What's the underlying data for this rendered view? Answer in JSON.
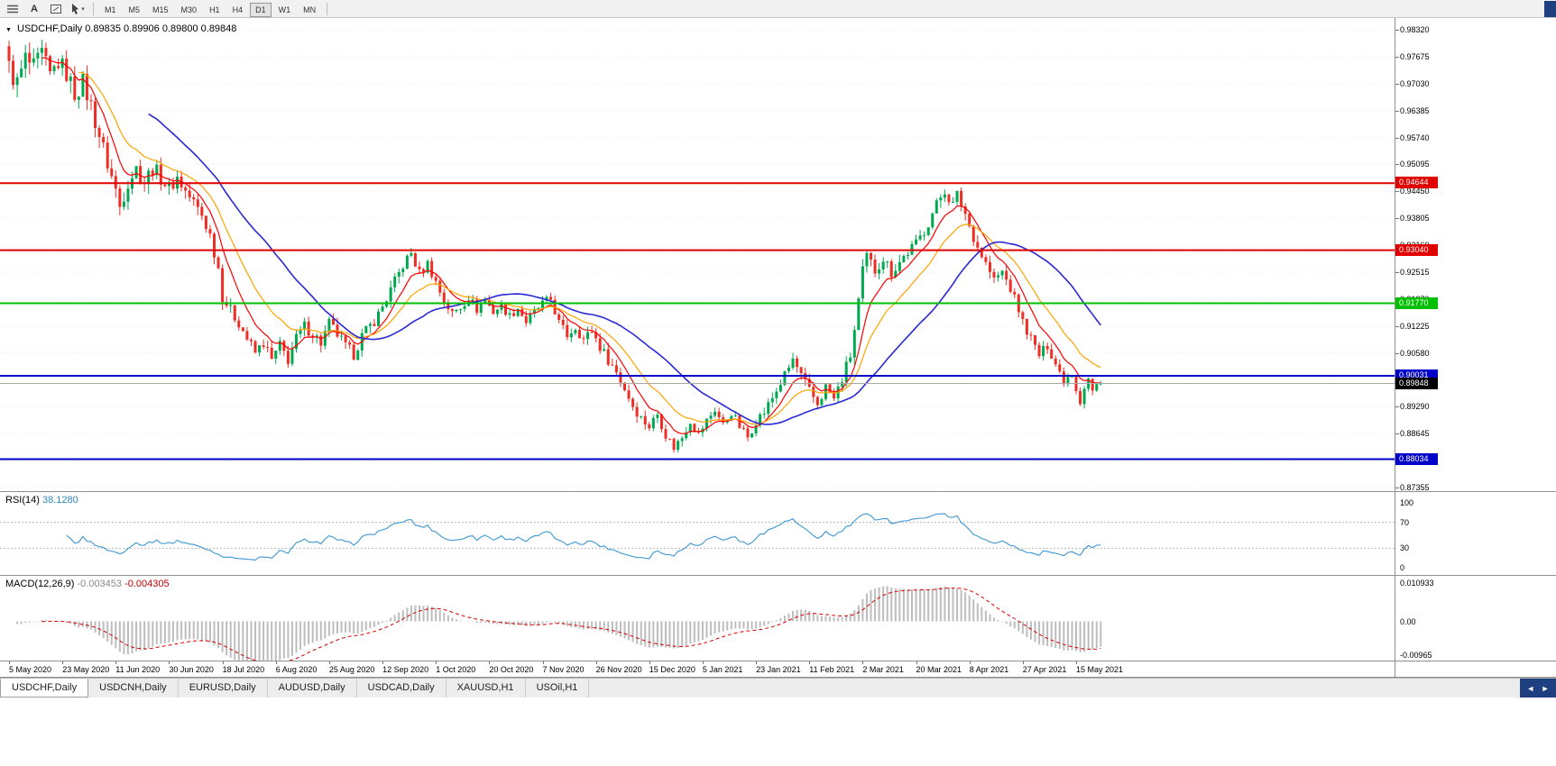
{
  "toolbar": {
    "text_tool_glyph": "A",
    "dropdown_caret": "▾",
    "timeframes": [
      {
        "label": "M1",
        "active": false
      },
      {
        "label": "M5",
        "active": false
      },
      {
        "label": "M15",
        "active": false
      },
      {
        "label": "M30",
        "active": false
      },
      {
        "label": "H1",
        "active": false
      },
      {
        "label": "H4",
        "active": false
      },
      {
        "label": "D1",
        "active": true
      },
      {
        "label": "W1",
        "active": false
      },
      {
        "label": "MN",
        "active": false
      }
    ]
  },
  "chart": {
    "collapse_glyph": "▼",
    "title_symbol": "USDCHF,Daily",
    "title_ohlc": "0.89835 0.89906 0.89800 0.89848"
  },
  "chart_data": {
    "type": "candlestick",
    "symbol": "USDCHF",
    "timeframe": "Daily",
    "last_bar": {
      "open": 0.89835,
      "high": 0.89906,
      "low": 0.898,
      "close": 0.89848
    },
    "price_axis": {
      "min": 0.87355,
      "max": 0.9832,
      "tick_step": 0.00645,
      "ticks": [
        "0.98320",
        "0.97675",
        "0.97030",
        "0.96385",
        "0.95740",
        "0.95095",
        "0.94450",
        "0.93805",
        "0.93160",
        "0.92515",
        "0.91870",
        "0.91225",
        "0.90580",
        "0.89935",
        "0.89290",
        "0.88645",
        "0.88000",
        "0.87355"
      ]
    },
    "bars_per_label": 13,
    "date_labels": [
      "5 May 2020",
      "23 May 2020",
      "11 Jun 2020",
      "30 Jun 2020",
      "18 Jul 2020",
      "6 Aug 2020",
      "25 Aug 2020",
      "12 Sep 2020",
      "1 Oct 2020",
      "20 Oct 2020",
      "7 Nov 2020",
      "26 Nov 2020",
      "15 Dec 2020",
      "5 Jan 2021",
      "23 Jan 2021",
      "11 Feb 2021",
      "2 Mar 2021",
      "20 Mar 2021",
      "8 Apr 2021",
      "27 Apr 2021",
      "15 May 2021"
    ],
    "levels": [
      {
        "price": 0.94644,
        "label": "0.94644",
        "color": "#e00000",
        "type": "resistance"
      },
      {
        "price": 0.9304,
        "label": "0.93040",
        "color": "#e00000",
        "type": "resistance"
      },
      {
        "price": 0.9177,
        "label": "0.91770",
        "color": "#00c000",
        "type": "pivot"
      },
      {
        "price": 0.90031,
        "label": "0.90031",
        "color": "#0000c8",
        "type": "support"
      },
      {
        "price": 0.88034,
        "label": "0.88034",
        "color": "#0000c8",
        "type": "support"
      }
    ],
    "current_price": {
      "price": 0.89848,
      "label": "0.89848",
      "badge_bg": "#000000",
      "line_color": "#a8a8a8"
    },
    "candle_colors": {
      "bull": "#00a94f",
      "bear": "#ee2e24"
    },
    "moving_averages": [
      {
        "name": "fast",
        "period": 8,
        "type": "ema",
        "color": "#ff0000"
      },
      {
        "name": "medium",
        "period": 17,
        "type": "ema",
        "color": "#ffa200"
      },
      {
        "name": "slow",
        "period": 34,
        "type": "sma",
        "color": "#2929d6"
      }
    ],
    "close_path_anchors": [
      [
        0,
        0.974
      ],
      [
        2,
        0.9702
      ],
      [
        4,
        0.9762
      ],
      [
        6,
        0.9738
      ],
      [
        8,
        0.9772
      ],
      [
        10,
        0.972
      ],
      [
        12,
        0.9755
      ],
      [
        14,
        0.9728
      ],
      [
        16,
        0.968
      ],
      [
        18,
        0.9705
      ],
      [
        20,
        0.965
      ],
      [
        22,
        0.958
      ],
      [
        24,
        0.9512
      ],
      [
        26,
        0.9448
      ],
      [
        27,
        0.9408
      ],
      [
        29,
        0.947
      ],
      [
        31,
        0.95
      ],
      [
        33,
        0.9468
      ],
      [
        35,
        0.9502
      ],
      [
        37,
        0.9478
      ],
      [
        39,
        0.9452
      ],
      [
        41,
        0.9478
      ],
      [
        43,
        0.9445
      ],
      [
        45,
        0.9418
      ],
      [
        47,
        0.9388
      ],
      [
        49,
        0.934
      ],
      [
        51,
        0.9262
      ],
      [
        52,
        0.9195
      ],
      [
        54,
        0.9158
      ],
      [
        56,
        0.9132
      ],
      [
        58,
        0.9092
      ],
      [
        60,
        0.9058
      ],
      [
        62,
        0.9082
      ],
      [
        64,
        0.904
      ],
      [
        66,
        0.9075
      ],
      [
        68,
        0.9042
      ],
      [
        70,
        0.9092
      ],
      [
        72,
        0.9122
      ],
      [
        74,
        0.9105
      ],
      [
        76,
        0.9082
      ],
      [
        78,
        0.9128
      ],
      [
        80,
        0.9102
      ],
      [
        82,
        0.9072
      ],
      [
        84,
        0.9055
      ],
      [
        86,
        0.9098
      ],
      [
        88,
        0.9122
      ],
      [
        90,
        0.915
      ],
      [
        92,
        0.9188
      ],
      [
        94,
        0.9228
      ],
      [
        96,
        0.9268
      ],
      [
        98,
        0.9296
      ],
      [
        100,
        0.9248
      ],
      [
        102,
        0.9272
      ],
      [
        104,
        0.9228
      ],
      [
        106,
        0.9182
      ],
      [
        108,
        0.9152
      ],
      [
        110,
        0.9168
      ],
      [
        112,
        0.9192
      ],
      [
        114,
        0.9162
      ],
      [
        116,
        0.9186
      ],
      [
        118,
        0.9156
      ],
      [
        120,
        0.9172
      ],
      [
        122,
        0.9146
      ],
      [
        124,
        0.9166
      ],
      [
        126,
        0.9132
      ],
      [
        128,
        0.9156
      ],
      [
        130,
        0.9176
      ],
      [
        132,
        0.9186
      ],
      [
        134,
        0.913
      ],
      [
        136,
        0.91
      ],
      [
        138,
        0.912
      ],
      [
        140,
        0.909
      ],
      [
        142,
        0.9112
      ],
      [
        144,
        0.9072
      ],
      [
        146,
        0.9042
      ],
      [
        148,
        0.9012
      ],
      [
        150,
        0.8972
      ],
      [
        152,
        0.8932
      ],
      [
        154,
        0.8902
      ],
      [
        156,
        0.8882
      ],
      [
        158,
        0.8912
      ],
      [
        160,
        0.8862
      ],
      [
        162,
        0.8832
      ],
      [
        164,
        0.8856
      ],
      [
        166,
        0.8896
      ],
      [
        168,
        0.8862
      ],
      [
        170,
        0.8896
      ],
      [
        172,
        0.8922
      ],
      [
        174,
        0.8886
      ],
      [
        176,
        0.8916
      ],
      [
        178,
        0.8882
      ],
      [
        180,
        0.8856
      ],
      [
        182,
        0.8896
      ],
      [
        184,
        0.8916
      ],
      [
        186,
        0.895
      ],
      [
        188,
        0.8986
      ],
      [
        190,
        0.9022
      ],
      [
        191,
        0.9042
      ],
      [
        193,
        0.9002
      ],
      [
        195,
        0.8966
      ],
      [
        197,
        0.8936
      ],
      [
        199,
        0.8976
      ],
      [
        201,
        0.8946
      ],
      [
        203,
        0.8996
      ],
      [
        205,
        0.9052
      ],
      [
        206,
        0.9112
      ],
      [
        207,
        0.9182
      ],
      [
        208,
        0.9252
      ],
      [
        209,
        0.9288
      ],
      [
        211,
        0.9256
      ],
      [
        213,
        0.9286
      ],
      [
        215,
        0.9252
      ],
      [
        217,
        0.9276
      ],
      [
        219,
        0.93
      ],
      [
        221,
        0.9318
      ],
      [
        223,
        0.9352
      ],
      [
        225,
        0.9392
      ],
      [
        227,
        0.9432
      ],
      [
        228,
        0.9448
      ],
      [
        230,
        0.9412
      ],
      [
        231,
        0.9436
      ],
      [
        233,
        0.9392
      ],
      [
        234,
        0.9362
      ],
      [
        236,
        0.9312
      ],
      [
        238,
        0.9272
      ],
      [
        240,
        0.9232
      ],
      [
        242,
        0.9252
      ],
      [
        244,
        0.9212
      ],
      [
        246,
        0.9162
      ],
      [
        247,
        0.9132
      ],
      [
        249,
        0.9092
      ],
      [
        251,
        0.9052
      ],
      [
        253,
        0.9076
      ],
      [
        255,
        0.9032
      ],
      [
        257,
        0.8992
      ],
      [
        259,
        0.9012
      ],
      [
        260,
        0.8972
      ],
      [
        261,
        0.8942
      ],
      [
        262,
        0.8976
      ],
      [
        263,
        0.8996
      ],
      [
        264,
        0.8966
      ],
      [
        265,
        0.8986
      ],
      [
        266,
        0.89848
      ]
    ],
    "volatility_profile": [
      [
        0,
        0.0042
      ],
      [
        20,
        0.0036
      ],
      [
        40,
        0.0028
      ],
      [
        60,
        0.0022
      ],
      [
        90,
        0.0022
      ],
      [
        120,
        0.0016
      ],
      [
        150,
        0.002
      ],
      [
        170,
        0.0016
      ],
      [
        200,
        0.0022
      ],
      [
        215,
        0.0024
      ],
      [
        235,
        0.0022
      ],
      [
        250,
        0.0018
      ],
      [
        266,
        0.0013
      ]
    ],
    "rsi": {
      "name": "RSI(14)",
      "value": "38.1280",
      "period": 14,
      "color": "#3c96d2",
      "levels": [
        70,
        30
      ],
      "scale_ticks": [
        "100",
        "70",
        "30",
        "0"
      ]
    },
    "macd": {
      "name": "MACD(12,26,9)",
      "value_main": "-0.003453",
      "value_signal": "-0.004305",
      "fast": 12,
      "slow": 26,
      "signal": 9,
      "histogram_color": "#bdbdbd",
      "signal_color": "#d40000",
      "scale_ticks": [
        "0.010933",
        "0.00",
        "-0.00965"
      ],
      "scale_max": 0.010933,
      "scale_min": -0.00965
    }
  },
  "tabs": [
    {
      "label": "USDCHF,Daily",
      "active": true
    },
    {
      "label": "USDCNH,Daily",
      "active": false
    },
    {
      "label": "EURUSD,Daily",
      "active": false
    },
    {
      "label": "AUDUSD,Daily",
      "active": false
    },
    {
      "label": "USDCAD,Daily",
      "active": false
    },
    {
      "label": "XAUUSD,H1",
      "active": false
    },
    {
      "label": "USOil,H1",
      "active": false
    }
  ],
  "tab_scroller": {
    "bg": "#1e3f80",
    "arrows": [
      "◄",
      "►"
    ]
  }
}
